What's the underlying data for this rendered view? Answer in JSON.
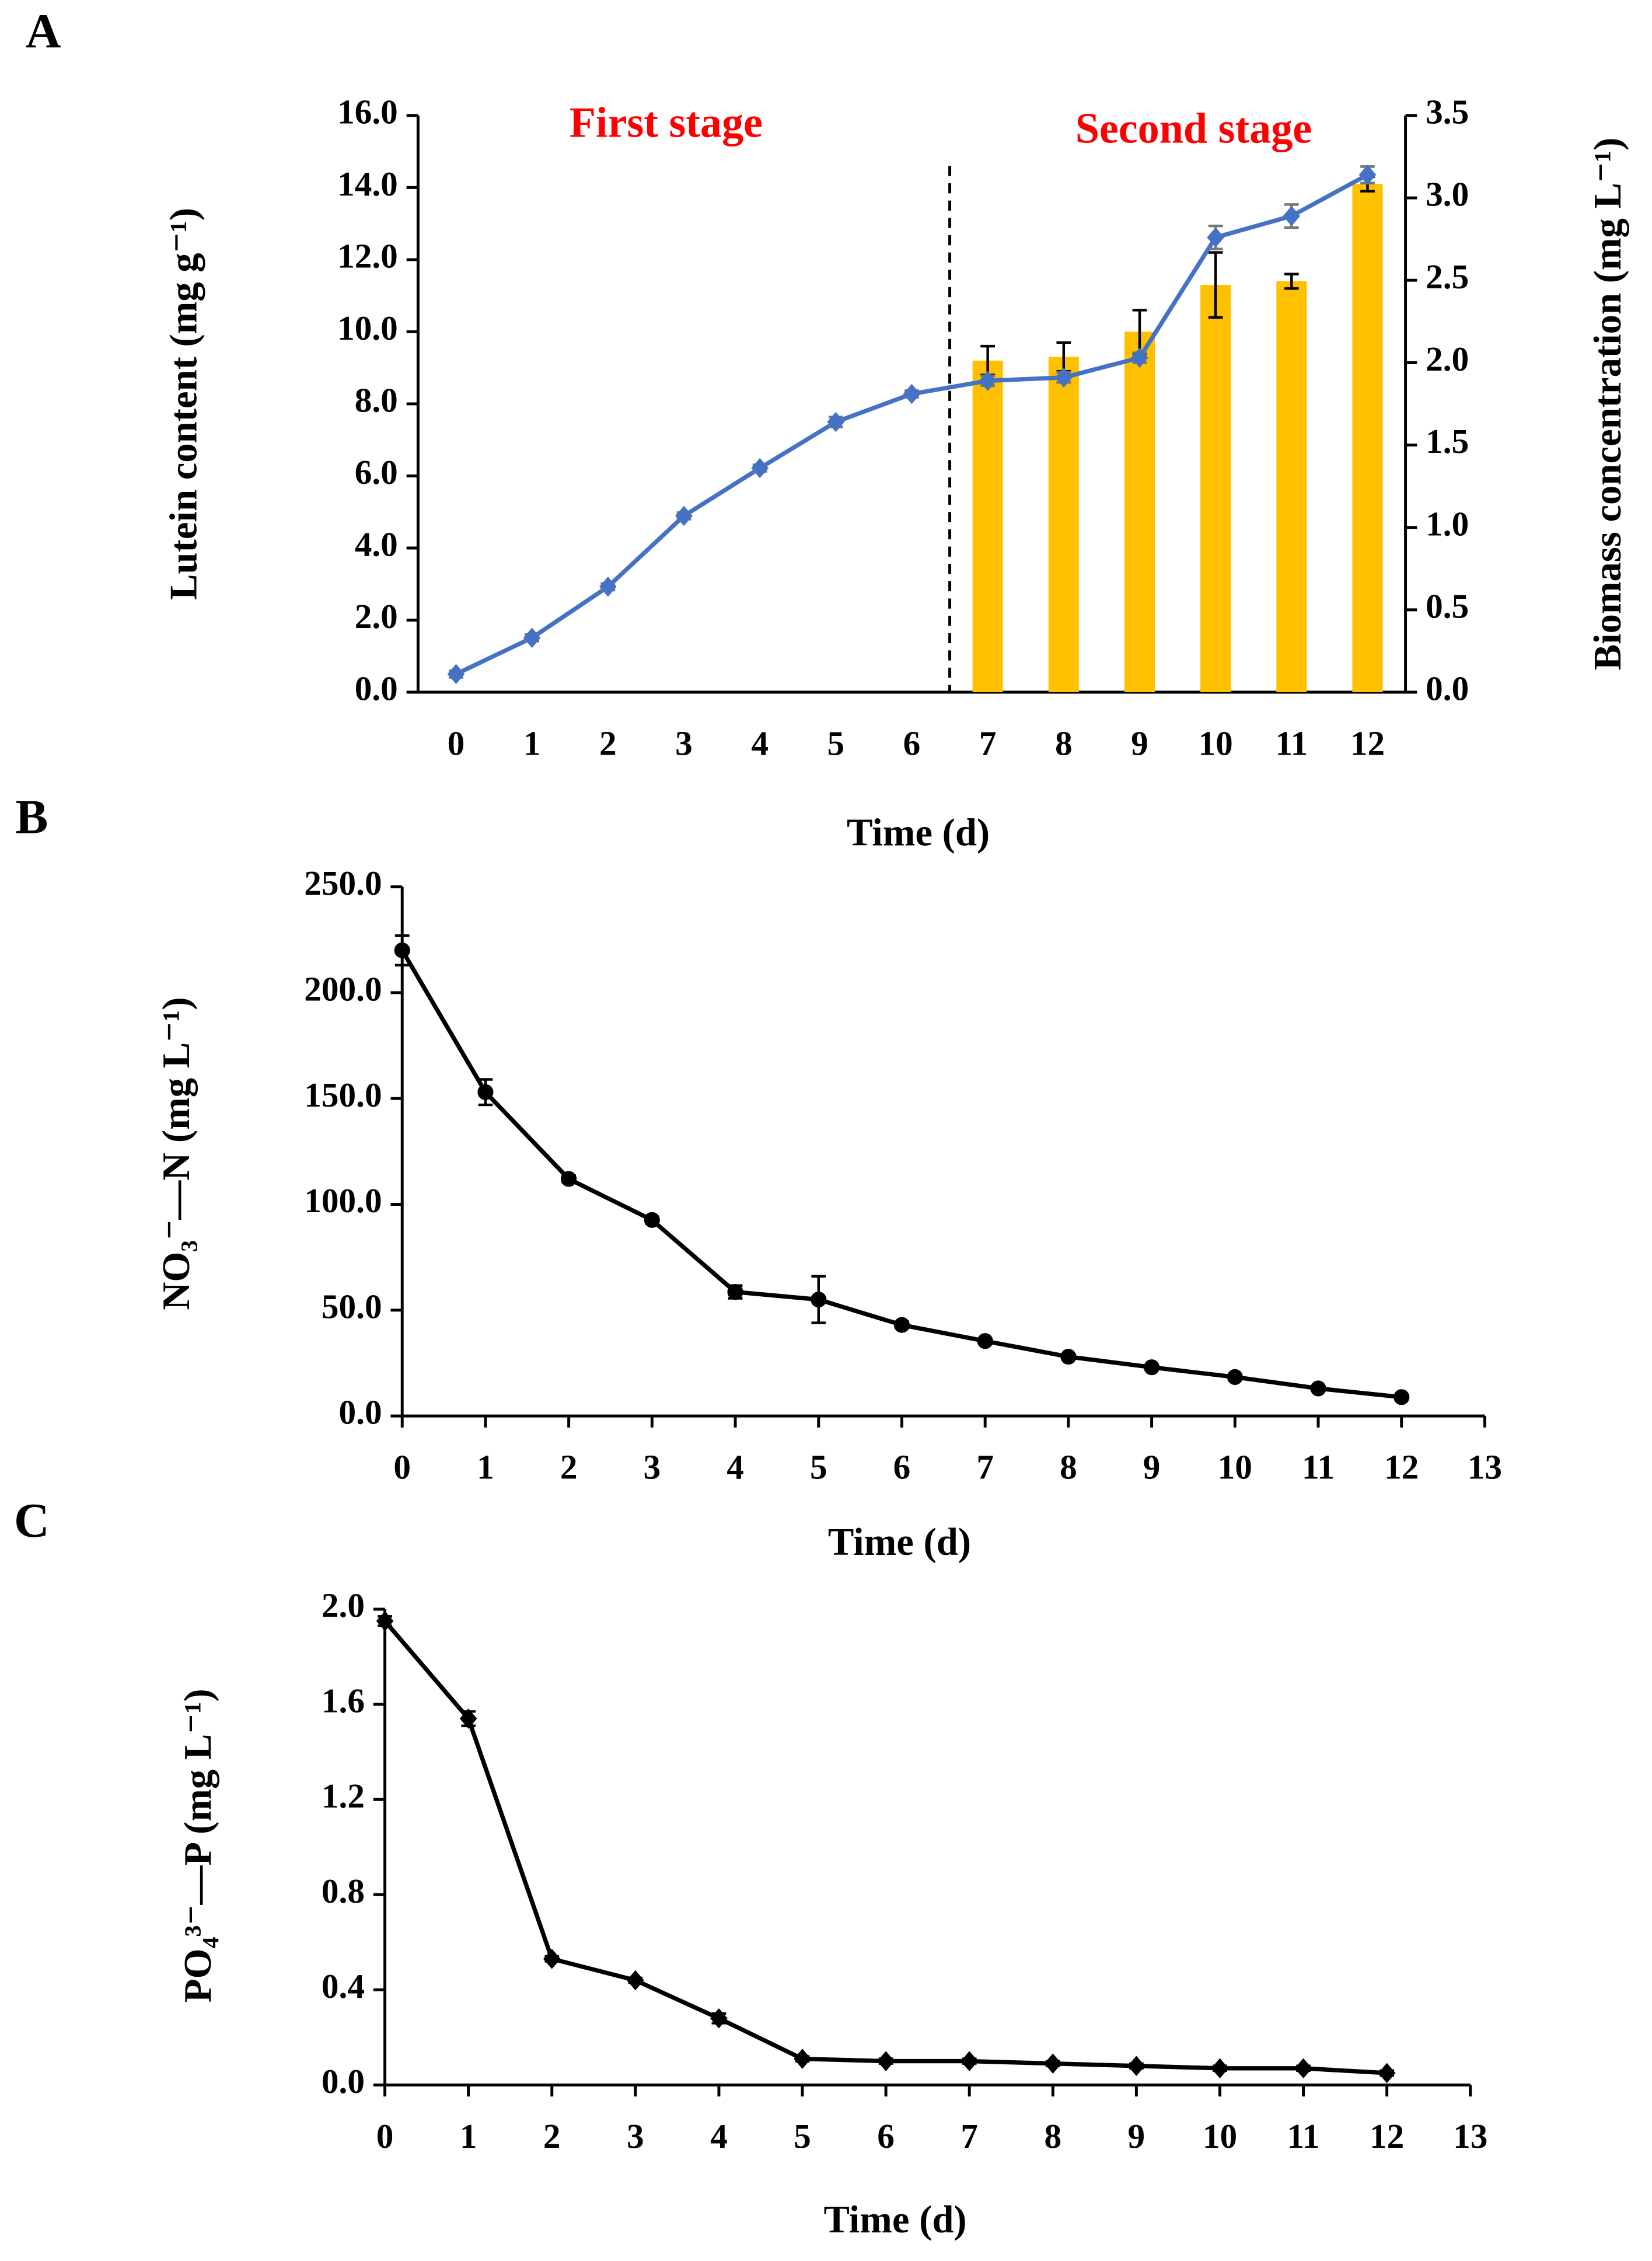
{
  "chart_data": [
    {
      "type": "combo",
      "panel": "A",
      "xlabel": "Time (d)",
      "ylabel": "Lutein content (mg g⁻¹)",
      "y2label": "Biomass concentration (mg L⁻¹)",
      "categories": [
        0,
        1,
        2,
        3,
        4,
        5,
        6,
        7,
        8,
        9,
        10,
        11,
        12
      ],
      "ylim": [
        0,
        16
      ],
      "yticks": [
        {
          "value": 0,
          "label": "0.0"
        },
        {
          "value": 2,
          "label": "2.0"
        },
        {
          "value": 4,
          "label": "4.0"
        },
        {
          "value": 6,
          "label": "6.0"
        },
        {
          "value": 8,
          "label": "8.0"
        },
        {
          "value": 10,
          "label": "10.0"
        },
        {
          "value": 12,
          "label": "12.0"
        },
        {
          "value": 14,
          "label": "14.0"
        },
        {
          "value": 16,
          "label": "16.0"
        }
      ],
      "y2lim": [
        0,
        3.5
      ],
      "y2ticks": [
        {
          "value": 0,
          "label": "0.0"
        },
        {
          "value": 0.5,
          "label": "0.5"
        },
        {
          "value": 1,
          "label": "1.0"
        },
        {
          "value": 1.5,
          "label": "1.5"
        },
        {
          "value": 2,
          "label": "2.0"
        },
        {
          "value": 2.5,
          "label": "2.5"
        },
        {
          "value": 3,
          "label": "3.0"
        },
        {
          "value": 3.5,
          "label": "3.5"
        }
      ],
      "series": [
        {
          "type": "bar",
          "color": "#ffc000",
          "values": [
            null,
            null,
            null,
            null,
            null,
            null,
            null,
            9.2,
            9.3,
            10.0,
            11.3,
            11.4,
            14.1
          ],
          "errors": [
            null,
            null,
            null,
            null,
            null,
            null,
            null,
            0.4,
            0.4,
            0.6,
            0.9,
            0.2,
            0.2
          ]
        },
        {
          "type": "line",
          "axis": "y2",
          "color": "#4472c4",
          "marker": "diamond",
          "values": [
            0.11,
            0.33,
            0.64,
            1.07,
            1.36,
            1.64,
            1.81,
            1.89,
            1.91,
            2.03,
            2.76,
            2.89,
            3.14
          ],
          "errors": [
            0.02,
            0.02,
            0.02,
            0.02,
            0.02,
            0.03,
            0.02,
            0.03,
            0.03,
            0.03,
            0.07,
            0.07,
            0.05
          ]
        }
      ],
      "annotations": [
        {
          "text": "First stage",
          "color": "#ff0000"
        },
        {
          "text": "Second stage",
          "color": "#ff0000"
        }
      ],
      "divider": 6.5
    },
    {
      "type": "line",
      "panel": "B",
      "xlabel": "Time (d)",
      "ylabel": "NO₃⁻—N (mg L⁻¹)",
      "x": [
        0,
        1,
        2,
        3,
        4,
        5,
        6,
        7,
        8,
        9,
        10,
        11,
        12
      ],
      "xlim": [
        0,
        13
      ],
      "xticks": [
        0,
        1,
        2,
        3,
        4,
        5,
        6,
        7,
        8,
        9,
        10,
        11,
        12,
        13
      ],
      "ylim": [
        0,
        250
      ],
      "yticks": [
        {
          "value": 0,
          "label": "0.0"
        },
        {
          "value": 50,
          "label": "50.0"
        },
        {
          "value": 100,
          "label": "100.0"
        },
        {
          "value": 150,
          "label": "150.0"
        },
        {
          "value": 200,
          "label": "200.0"
        },
        {
          "value": 250,
          "label": "250.0"
        }
      ],
      "series": [
        {
          "color": "#000000",
          "marker": "circle",
          "values": [
            220,
            153,
            112,
            92.6,
            58.6,
            55,
            43,
            35.4,
            28,
            23,
            18.4,
            13,
            8.9
          ],
          "errors": [
            7,
            6,
            1.5,
            1.5,
            3,
            11,
            1.5,
            1,
            1,
            1,
            1,
            1,
            1
          ]
        }
      ]
    },
    {
      "type": "line",
      "panel": "C",
      "xlabel": "Time (d)",
      "ylabel": "PO₄³⁻—P (mg L⁻¹)",
      "x": [
        0,
        1,
        2,
        3,
        4,
        5,
        6,
        7,
        8,
        9,
        10,
        11,
        12
      ],
      "xlim": [
        0,
        13
      ],
      "xticks": [
        0,
        1,
        2,
        3,
        4,
        5,
        6,
        7,
        8,
        9,
        10,
        11,
        12,
        13
      ],
      "ylim": [
        0,
        2
      ],
      "yticks": [
        {
          "value": 0,
          "label": "0.0"
        },
        {
          "value": 0.4,
          "label": "0.4"
        },
        {
          "value": 0.8,
          "label": "0.8"
        },
        {
          "value": 1.2,
          "label": "1.2"
        },
        {
          "value": 1.6,
          "label": "1.6"
        },
        {
          "value": 2,
          "label": "2.0"
        }
      ],
      "series": [
        {
          "color": "#000000",
          "marker": "diamond",
          "values": [
            1.95,
            1.54,
            0.53,
            0.44,
            0.28,
            0.11,
            0.1,
            0.1,
            0.09,
            0.08,
            0.07,
            0.07,
            0.05
          ],
          "errors": [
            0.02,
            0.03,
            0.01,
            0.01,
            0.02,
            0.01,
            0.01,
            0.01,
            0.01,
            0.01,
            0.01,
            0.01,
            0.01
          ]
        }
      ]
    }
  ]
}
